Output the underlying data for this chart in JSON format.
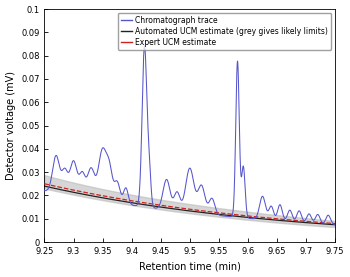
{
  "xlabel": "Retention time (min)",
  "ylabel": "Detector voltage (mV)",
  "xlim": [
    9.25,
    9.75
  ],
  "ylim": [
    0,
    0.1
  ],
  "yticks": [
    0,
    0.01,
    0.02,
    0.03,
    0.04,
    0.05,
    0.06,
    0.07,
    0.08,
    0.09,
    0.1
  ],
  "ytick_labels": [
    "0",
    "0.01",
    "0.02",
    "0.03",
    "0.04",
    "0.05",
    "0.06",
    "0.07",
    "0.08",
    "0.09",
    "0.1"
  ],
  "xticks": [
    9.25,
    9.3,
    9.35,
    9.4,
    9.45,
    9.5,
    9.55,
    9.6,
    9.65,
    9.7,
    9.75
  ],
  "legend_labels": [
    "Chromatograph trace",
    "Automated UCM estimate (grey gives likely limits)",
    "Expert UCM estimate"
  ],
  "blue_color": "#5555cc",
  "black_color": "#222222",
  "red_color": "#cc2222",
  "grey_color": "#bbbbbb",
  "bg_color": "#ffffff",
  "figsize": [
    3.5,
    2.77
  ],
  "dpi": 100,
  "legend_fontsize": 5.5,
  "tick_fontsize": 6,
  "label_fontsize": 7
}
